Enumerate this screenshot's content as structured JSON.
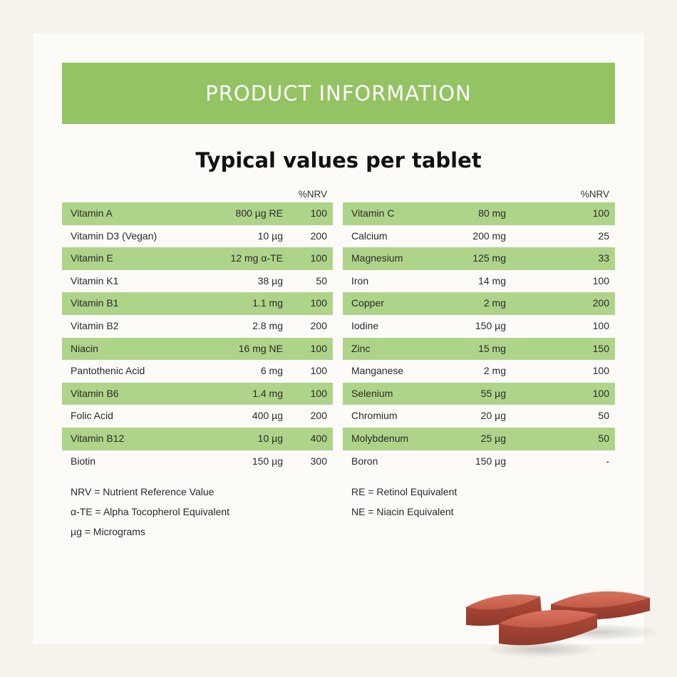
{
  "banner": {
    "title": "PRODUCT INFORMATION"
  },
  "subtitle": "Typical values per tablet",
  "left_table": {
    "nrv_header": "%NRV",
    "rows": [
      {
        "name": "Vitamin A",
        "amount": "800 µg RE",
        "nrv": "100"
      },
      {
        "name": "Vitamin D3 (Vegan)",
        "amount": "10 µg",
        "nrv": "200"
      },
      {
        "name": "Vitamin E",
        "amount": "12 mg α-TE",
        "nrv": "100"
      },
      {
        "name": "Vitamin K1",
        "amount": "38 µg",
        "nrv": "50"
      },
      {
        "name": "Vitamin B1",
        "amount": "1.1 mg",
        "nrv": "100"
      },
      {
        "name": "Vitamin B2",
        "amount": "2.8 mg",
        "nrv": "200"
      },
      {
        "name": "Niacin",
        "amount": "16 mg NE",
        "nrv": "100"
      },
      {
        "name": "Pantothenic Acid",
        "amount": "6 mg",
        "nrv": "100"
      },
      {
        "name": "Vitamin B6",
        "amount": "1.4 mg",
        "nrv": "100"
      },
      {
        "name": "Folic Acid",
        "amount": "400 µg",
        "nrv": "200"
      },
      {
        "name": "Vitamin B12",
        "amount": "10 µg",
        "nrv": "400"
      },
      {
        "name": "Biotin",
        "amount": "150 µg",
        "nrv": "300"
      }
    ]
  },
  "right_table": {
    "nrv_header": "%NRV",
    "rows": [
      {
        "name": "Vitamin C",
        "amount": "80 mg",
        "nrv": "100"
      },
      {
        "name": "Calcium",
        "amount": "200 mg",
        "nrv": "25"
      },
      {
        "name": "Magnesium",
        "amount": "125 mg",
        "nrv": "33"
      },
      {
        "name": "Iron",
        "amount": "14 mg",
        "nrv": "100"
      },
      {
        "name": "Copper",
        "amount": "2 mg",
        "nrv": "200"
      },
      {
        "name": "Iodine",
        "amount": "150 µg",
        "nrv": "100"
      },
      {
        "name": "Zinc",
        "amount": "15 mg",
        "nrv": "150"
      },
      {
        "name": "Manganese",
        "amount": "2 mg",
        "nrv": "100"
      },
      {
        "name": "Selenium",
        "amount": "55 µg",
        "nrv": "100"
      },
      {
        "name": "Chromium",
        "amount": "20 µg",
        "nrv": "50"
      },
      {
        "name": "Molybdenum",
        "amount": "25 µg",
        "nrv": "50"
      },
      {
        "name": "Boron",
        "amount": "150 µg",
        "nrv": "-"
      }
    ]
  },
  "notes": {
    "left": [
      "NRV = Nutrient Reference Value",
      "α-TE = Alpha Tocopherol Equivalent",
      "µg = Micrograms"
    ],
    "right": [
      "RE = Retinol Equivalent",
      "NE = Niacin Equivalent"
    ]
  },
  "colors": {
    "banner": "#93c362",
    "row_shade": "#aed48a",
    "tablet": "#c95f4c"
  }
}
